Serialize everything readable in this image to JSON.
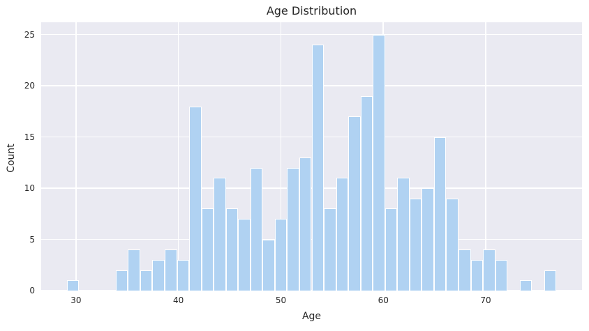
{
  "title": "Age Distribution",
  "chart_data": {
    "type": "bar",
    "subtype": "histogram",
    "title": "Age Distribution",
    "xlabel": "Age",
    "ylabel": "Count",
    "bin_start": 29.1,
    "bin_width": 1.195,
    "counts": [
      1,
      0,
      0,
      0,
      2,
      4,
      2,
      3,
      4,
      3,
      18,
      8,
      11,
      8,
      7,
      12,
      5,
      7,
      12,
      13,
      24,
      8,
      11,
      17,
      19,
      25,
      8,
      11,
      9,
      10,
      15,
      9,
      4,
      3,
      4,
      3,
      0,
      1,
      0,
      2
    ],
    "xlim": [
      26.6,
      79.4
    ],
    "ylim": [
      0,
      26.2
    ],
    "x_ticks": [
      30,
      40,
      50,
      60,
      70
    ],
    "y_ticks": [
      0,
      5,
      10,
      15,
      20,
      25
    ],
    "grid": true,
    "legend": "none",
    "colors": {
      "bar_fill": "#b0d2f2",
      "bar_edge": "#ffffff",
      "plot_bg": "#eaeaf2",
      "gridline": "#ffffff",
      "text": "#262626",
      "figure_bg": "#ffffff"
    }
  }
}
